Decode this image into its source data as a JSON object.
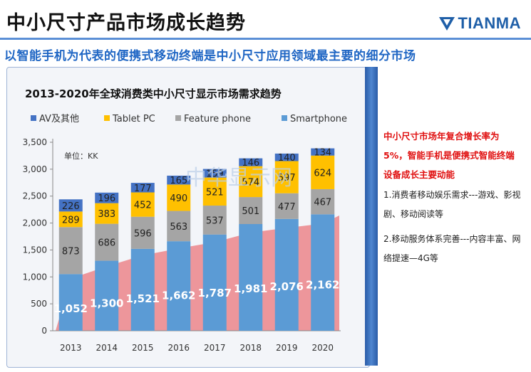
{
  "page": {
    "title": "中小尺寸产品市场成长趋势",
    "brand": "TIANMA",
    "subtitle": "以智能手机为代表的便携式移动终端是中小尺寸应用领域最主要的细分市场",
    "watermark": "中华显示网"
  },
  "side_panel": {
    "highlight": "中小尺寸市场年复合增长率为5%，智能手机是便携式智能终端设备成长主要动能",
    "point1": "1.消费者移动娱乐需求---游戏、影视剧、移动阅读等",
    "point2": "2.移动服务体系完善---内容丰富、网络提速—4G等"
  },
  "colors": {
    "smartphone": "#5b9bd5",
    "feature_phone": "#a5a5a5",
    "tablet_pc": "#ffc000",
    "av_other": "#4472c4",
    "trend": "#e8474f",
    "title_rule": "#5b8fd6",
    "subtitle": "#1f66c4",
    "highlight_text": "#e01010"
  },
  "chart_data": {
    "type": "bar",
    "stacked": true,
    "title": "2013-2020年全球消费类中小尺寸显示市场需求趋势",
    "unit_label": "单位：KK",
    "categories": [
      "2013",
      "2014",
      "2015",
      "2016",
      "2017",
      "2018",
      "2019",
      "2020"
    ],
    "series": [
      {
        "name": "Smartphone",
        "values": [
          1052,
          1300,
          1521,
          1662,
          1787,
          1981,
          2076,
          2162
        ]
      },
      {
        "name": "Feature phone",
        "values": [
          873,
          686,
          596,
          563,
          537,
          501,
          477,
          467
        ]
      },
      {
        "name": "Tablet PC",
        "values": [
          289,
          383,
          452,
          490,
          521,
          574,
          597,
          624
        ]
      },
      {
        "name": "AV及其他",
        "values": [
          226,
          196,
          177,
          165,
          159,
          146,
          140,
          134
        ]
      }
    ],
    "legend_order": [
      "AV及其他",
      "Tablet PC",
      "Feature phone",
      "Smartphone"
    ],
    "legend_position": "top",
    "ylim": [
      0,
      3500
    ],
    "yticks": [
      "0",
      "500",
      "1,000",
      "1,500",
      "2,000",
      "2,500",
      "3,000",
      "3,500"
    ],
    "grid": false,
    "trend_area": true
  }
}
